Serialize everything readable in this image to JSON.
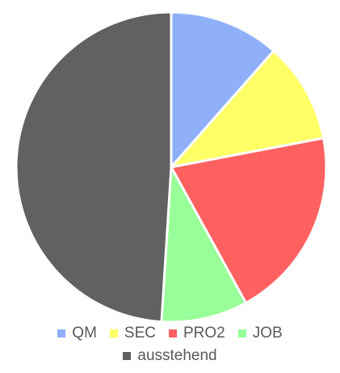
{
  "chart_data": {
    "type": "pie",
    "categories": [
      "QM",
      "SEC",
      "PRO2",
      "JOB",
      "ausstehend"
    ],
    "values": [
      11.5,
      10.5,
      20,
      9,
      49
    ],
    "colors": [
      "#8fb0f9",
      "#ffff66",
      "#ff6161",
      "#99ff99",
      "#616161"
    ],
    "start_angle_deg": 0,
    "direction": "clockwise",
    "legend_position": "bottom",
    "title": ""
  }
}
